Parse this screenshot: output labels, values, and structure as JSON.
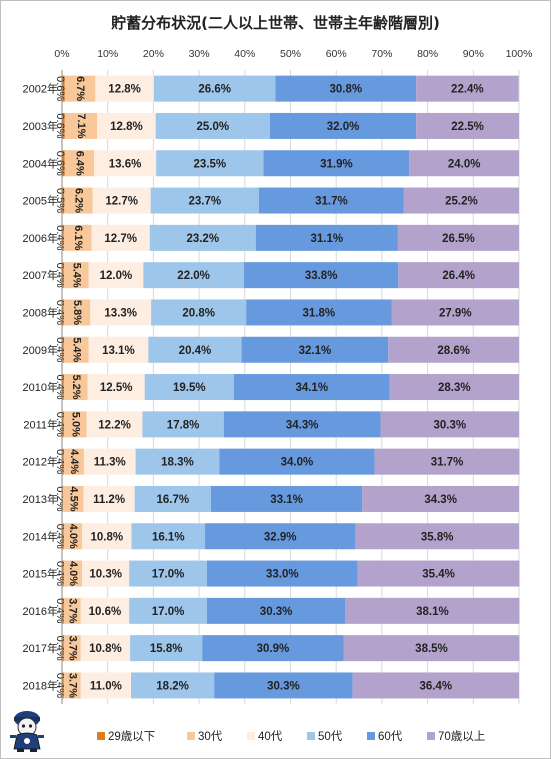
{
  "title": "貯蓄分布状況(二人以上世帯、世帯主年齢階層別)",
  "colors": {
    "29歳以下": "#e07c1e",
    "30代": "#f8c79a",
    "40代": "#fdeee1",
    "50代": "#9ec6ea",
    "60代": "#6699de",
    "70歳以上": "#b3a2cc"
  },
  "chart_data": {
    "type": "bar",
    "orientation": "horizontal",
    "stacked": "percent",
    "title": "貯蓄分布状況(二人以上世帯、世帯主年齢階層別)",
    "xlim": [
      0,
      100
    ],
    "x_ticks": [
      "0%",
      "10%",
      "20%",
      "30%",
      "40%",
      "50%",
      "60%",
      "70%",
      "80%",
      "90%",
      "100%"
    ],
    "legend_position": "bottom",
    "grid": true,
    "categories": [
      "2002年",
      "2003年",
      "2004年",
      "2005年",
      "2006年",
      "2007年",
      "2008年",
      "2009年",
      "2010年",
      "2011年",
      "2012年",
      "2013年",
      "2014年",
      "2015年",
      "2016年",
      "2017年",
      "2018年"
    ],
    "series": [
      {
        "name": "29歳以下",
        "values": [
          0.6,
          0.6,
          0.6,
          0.5,
          0.4,
          0.4,
          0.4,
          0.4,
          0.4,
          0.4,
          0.4,
          0.2,
          0.4,
          0.4,
          0.4,
          0.4,
          0.4
        ],
        "labels": [
          "0.6%",
          "0.6%",
          "0.6%",
          "0.5%",
          "0.4%",
          "0.4%",
          "0.4%",
          "0.4%",
          "0.4%",
          "0.4%",
          "0.4%",
          "0.2%",
          "0.4%",
          "0.4%",
          "0.4%",
          "0.4%",
          "0.4%"
        ]
      },
      {
        "name": "30代",
        "values": [
          6.7,
          7.1,
          6.4,
          6.2,
          6.1,
          5.4,
          5.8,
          5.4,
          5.2,
          5.0,
          4.4,
          4.5,
          4.0,
          4.0,
          3.7,
          3.7,
          3.7
        ],
        "labels": [
          "6.7%",
          "7.1%",
          "6.4%",
          "6.2%",
          "6.1%",
          "5.4%",
          "5.8%",
          "5.4%",
          "5.2%",
          "5.0%",
          "4.4%",
          "4.5%",
          "4.0%",
          "4.0%",
          "3.7%",
          "3.7%",
          "3.7%"
        ]
      },
      {
        "name": "40代",
        "values": [
          12.8,
          12.8,
          13.6,
          12.7,
          12.7,
          12.0,
          13.3,
          13.1,
          12.5,
          12.2,
          11.3,
          11.2,
          10.8,
          10.3,
          10.6,
          10.8,
          11.0
        ],
        "labels": [
          "12.8%",
          "12.8%",
          "13.6%",
          "12.7%",
          "12.7%",
          "12.0%",
          "13.3%",
          "13.1%",
          "12.5%",
          "12.2%",
          "11.3%",
          "11.2%",
          "10.8%",
          "10.3%",
          "10.6%",
          "10.8%",
          "11.0%"
        ]
      },
      {
        "name": "50代",
        "values": [
          26.6,
          25.0,
          23.5,
          23.7,
          23.2,
          22.0,
          20.8,
          20.4,
          19.5,
          17.8,
          18.3,
          16.7,
          16.1,
          17.0,
          17.0,
          15.8,
          18.2
        ],
        "labels": [
          "26.6%",
          "25.0%",
          "23.5%",
          "23.7%",
          "23.2%",
          "22.0%",
          "20.8%",
          "20.4%",
          "19.5%",
          "17.8%",
          "18.3%",
          "16.7%",
          "16.1%",
          "17.0%",
          "17.0%",
          "15.8%",
          "18.2%"
        ]
      },
      {
        "name": "60代",
        "values": [
          30.8,
          32.0,
          31.9,
          31.7,
          31.1,
          33.8,
          31.8,
          32.1,
          34.1,
          34.3,
          34.0,
          33.1,
          32.9,
          33.0,
          30.3,
          30.9,
          30.3
        ],
        "labels": [
          "30.8%",
          "32.0%",
          "31.9%",
          "31.7%",
          "31.1%",
          "33.8%",
          "31.8%",
          "32.1%",
          "34.1%",
          "34.3%",
          "34.0%",
          "33.1%",
          "32.9%",
          "33.0%",
          "30.3%",
          "30.9%",
          "30.3%"
        ]
      },
      {
        "name": "70歳以上",
        "values": [
          22.4,
          22.5,
          24.0,
          25.2,
          26.5,
          26.4,
          27.9,
          28.6,
          28.3,
          30.3,
          31.7,
          34.3,
          35.8,
          35.4,
          38.1,
          38.5,
          36.4
        ],
        "labels": [
          "22.4%",
          "22.5%",
          "24.0%",
          "25.2%",
          "26.5%",
          "26.4%",
          "27.9%",
          "28.6%",
          "28.3%",
          "30.3%",
          "31.7%",
          "34.3%",
          "35.8%",
          "35.4%",
          "38.1%",
          "38.5%",
          "36.4%"
        ]
      }
    ]
  }
}
